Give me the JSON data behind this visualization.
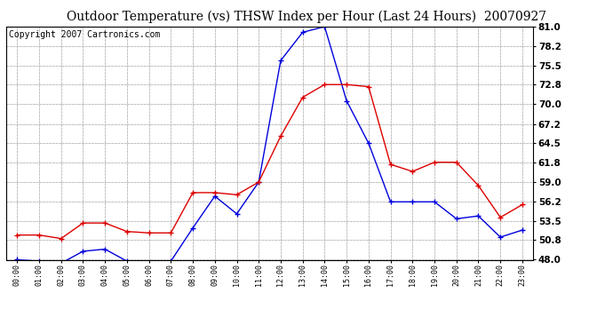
{
  "title": "Outdoor Temperature (vs) THSW Index per Hour (Last 24 Hours)  20070927",
  "copyright": "Copyright 2007 Cartronics.com",
  "x_labels": [
    "00:00",
    "01:00",
    "02:00",
    "03:00",
    "04:00",
    "05:00",
    "06:00",
    "07:00",
    "08:00",
    "09:00",
    "10:00",
    "11:00",
    "12:00",
    "13:00",
    "14:00",
    "15:00",
    "16:00",
    "17:00",
    "18:00",
    "19:00",
    "20:00",
    "21:00",
    "22:00",
    "23:00"
  ],
  "temp_blue": [
    48.0,
    47.8,
    47.5,
    49.2,
    49.5,
    47.8,
    47.5,
    47.8,
    52.5,
    57.0,
    54.5,
    59.0,
    76.2,
    80.2,
    81.0,
    70.5,
    64.5,
    56.2,
    56.2,
    56.2,
    53.8,
    54.2,
    51.2,
    52.2
  ],
  "thsw_red": [
    51.5,
    51.5,
    51.0,
    53.2,
    53.2,
    52.0,
    51.8,
    51.8,
    57.5,
    57.5,
    57.2,
    59.0,
    65.5,
    71.0,
    72.8,
    72.8,
    72.5,
    61.5,
    60.5,
    61.8,
    61.8,
    58.5,
    54.0,
    55.8
  ],
  "ylim": [
    48.0,
    81.0
  ],
  "yticks": [
    48.0,
    50.8,
    53.5,
    56.2,
    59.0,
    61.8,
    64.5,
    67.2,
    70.0,
    72.8,
    75.5,
    78.2,
    81.0
  ],
  "blue_color": "#0000dd",
  "red_color": "#dd0000",
  "bg_color": "#ffffff",
  "plot_bg": "#ffffff",
  "grid_color": "#aaaaaa",
  "title_color": "#000000",
  "title_fontsize": 10,
  "copyright_fontsize": 7
}
